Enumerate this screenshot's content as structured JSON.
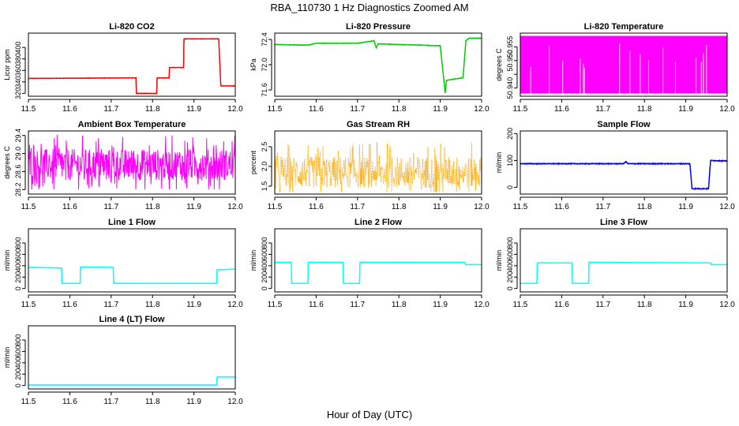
{
  "page": {
    "title": "RBA_110730  1 Hz Diagnostics Zoomed AM",
    "x_label": "Hour of Day (UTC)"
  },
  "chart_data": [
    {
      "type": "line",
      "title": "Li-820 CO2",
      "ylabel": "Licor ppm",
      "color": "#ff0000",
      "xlim": [
        11.5,
        12.0
      ],
      "ylim": [
        315,
        425
      ],
      "xticks": [
        11.5,
        11.6,
        11.7,
        11.8,
        11.9,
        12.0
      ],
      "yticks": [
        320,
        340,
        360,
        380,
        400
      ],
      "series": [
        {
          "x": [
            11.5,
            11.76,
            11.761,
            11.81,
            11.811,
            11.84,
            11.841,
            11.875,
            11.876,
            11.96,
            11.965,
            12.0
          ],
          "y": [
            346,
            347,
            320,
            320,
            347,
            347,
            365,
            365,
            415,
            415,
            333,
            333
          ],
          "noise": 1
        }
      ]
    },
    {
      "type": "line",
      "title": "Li-820 Pressure",
      "ylabel": "kPa",
      "color": "#00cc00",
      "xlim": [
        11.5,
        12.0
      ],
      "ylim": [
        71.5,
        72.5
      ],
      "xticks": [
        11.5,
        11.6,
        11.7,
        11.8,
        11.9,
        12.0
      ],
      "yticks": [
        71.6,
        72.0,
        72.4
      ],
      "series": [
        {
          "x": [
            11.5,
            11.58,
            11.6,
            11.7,
            11.74,
            11.745,
            11.75,
            11.8,
            11.9,
            11.912,
            11.915,
            11.922,
            11.93,
            11.955,
            11.962,
            11.97,
            12.0
          ],
          "y": [
            72.32,
            72.31,
            72.34,
            72.34,
            72.38,
            72.27,
            72.33,
            72.32,
            72.3,
            71.55,
            71.75,
            71.76,
            71.77,
            71.79,
            72.38,
            72.42,
            72.42
          ],
          "noise": 0.01
        }
      ]
    },
    {
      "type": "line",
      "title": "Li-820 Temperature",
      "ylabel": "degrees C",
      "color": "#ff00ff",
      "xlim": [
        11.5,
        12.0
      ],
      "ylim": [
        50.937,
        50.96
      ],
      "xticks": [
        11.5,
        11.6,
        11.7,
        11.8,
        11.9,
        12.0
      ],
      "yticks": [
        50.94,
        50.945,
        50.95,
        50.955
      ],
      "ytick_labels": [
        "50.940",
        "",
        "50.950",
        "50.955"
      ],
      "series": [
        {
          "x": [
            11.5,
            12.0
          ],
          "y": [
            50.938,
            50.959
          ],
          "fill": true
        }
      ]
    },
    {
      "type": "line",
      "title": "Ambient Box Temperature",
      "ylabel": "degrees C",
      "color": "#ff00ff",
      "xlim": [
        11.5,
        12.0
      ],
      "ylim": [
        28.1,
        29.5
      ],
      "xticks": [
        11.5,
        11.6,
        11.7,
        11.8,
        11.9,
        12.0
      ],
      "yticks": [
        28.2,
        28.6,
        29.0,
        29.4
      ],
      "series": [
        {
          "x": [
            11.5,
            12.0
          ],
          "y": [
            28.2,
            29.5
          ],
          "center": 28.75,
          "noise": 0.35
        }
      ]
    },
    {
      "type": "line",
      "title": "Gas Stream RH",
      "ylabel": "percent",
      "color": "#ffa500",
      "xlim": [
        11.5,
        12.0
      ],
      "ylim": [
        1.3,
        2.9
      ],
      "xticks": [
        11.5,
        11.6,
        11.7,
        11.8,
        11.9,
        12.0
      ],
      "yticks": [
        1.5,
        2.0,
        2.5
      ],
      "series": [
        {
          "x": [
            11.5,
            12.0
          ],
          "y": [
            1.35,
            2.8
          ],
          "center": 1.85,
          "noise": 0.4,
          "dotted": true
        }
      ]
    },
    {
      "type": "line",
      "title": "Sample Flow",
      "ylabel": "ml/min",
      "color": "#0000ff",
      "xlim": [
        11.5,
        12.0
      ],
      "ylim": [
        -25,
        210
      ],
      "xticks": [
        11.5,
        11.6,
        11.7,
        11.8,
        11.9,
        12.0
      ],
      "yticks": [
        0,
        100,
        200
      ],
      "series": [
        {
          "x": [
            11.5,
            11.75,
            11.755,
            11.76,
            11.91,
            11.915,
            11.955,
            11.96,
            12.0
          ],
          "y": [
            88,
            88,
            96,
            88,
            88,
            -5,
            -5,
            100,
            98
          ],
          "noise": 4
        }
      ]
    },
    {
      "type": "line",
      "title": "Line 1 Flow",
      "ylabel": "ml/min",
      "color": "#00ffff",
      "xlim": [
        11.5,
        12.0
      ],
      "ylim": [
        -60,
        1050
      ],
      "xticks": [
        11.5,
        11.6,
        11.7,
        11.8,
        11.9,
        12.0
      ],
      "yticks": [
        0,
        200,
        400,
        600,
        800
      ],
      "series": [
        {
          "x": [
            11.5,
            11.58,
            11.581,
            11.625,
            11.626,
            11.705,
            11.706,
            11.955,
            11.956,
            12.0
          ],
          "y": [
            370,
            360,
            90,
            90,
            380,
            370,
            90,
            90,
            330,
            340
          ],
          "noise": 6
        }
      ]
    },
    {
      "type": "line",
      "title": "Line 2 Flow",
      "ylabel": "ml/min",
      "color": "#00ffff",
      "xlim": [
        11.5,
        12.0
      ],
      "ylim": [
        -60,
        1050
      ],
      "xticks": [
        11.5,
        11.6,
        11.7,
        11.8,
        11.9,
        12.0
      ],
      "yticks": [
        0,
        200,
        400,
        600,
        800
      ],
      "series": [
        {
          "x": [
            11.5,
            11.54,
            11.541,
            11.58,
            11.581,
            11.665,
            11.666,
            11.705,
            11.706,
            11.96,
            11.961,
            12.0
          ],
          "y": [
            460,
            460,
            90,
            90,
            460,
            460,
            90,
            90,
            460,
            460,
            420,
            420
          ],
          "noise": 4
        }
      ]
    },
    {
      "type": "line",
      "title": "Line 3 Flow",
      "ylabel": "ml/min",
      "color": "#00ffff",
      "xlim": [
        11.5,
        12.0
      ],
      "ylim": [
        -60,
        1050
      ],
      "xticks": [
        11.5,
        11.6,
        11.7,
        11.8,
        11.9,
        12.0
      ],
      "yticks": [
        0,
        200,
        400,
        600,
        800
      ],
      "series": [
        {
          "x": [
            11.5,
            11.54,
            11.541,
            11.625,
            11.626,
            11.665,
            11.666,
            11.96,
            11.961,
            12.0
          ],
          "y": [
            90,
            90,
            450,
            450,
            90,
            90,
            460,
            450,
            420,
            420
          ],
          "noise": 5
        }
      ]
    },
    {
      "type": "line",
      "title": "Line 4 (LT) Flow",
      "ylabel": "ml/min",
      "color": "#00ffff",
      "xlim": [
        11.5,
        12.0
      ],
      "ylim": [
        -60,
        1050
      ],
      "xticks": [
        11.5,
        11.6,
        11.7,
        11.8,
        11.9,
        12.0
      ],
      "yticks": [
        0,
        200,
        400,
        600,
        800
      ],
      "series": [
        {
          "x": [
            11.5,
            11.955,
            11.956,
            12.0
          ],
          "y": [
            10,
            10,
            150,
            150
          ],
          "noise": 2
        }
      ]
    }
  ]
}
